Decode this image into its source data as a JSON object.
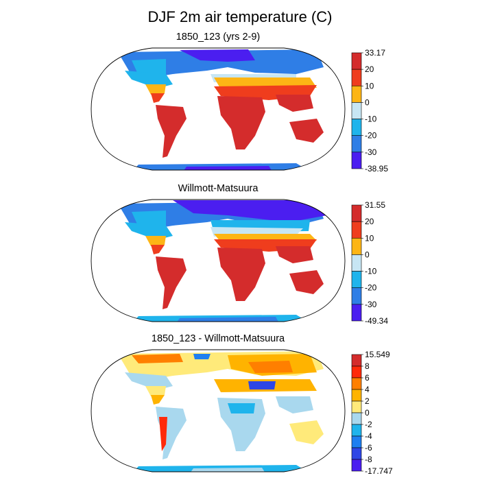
{
  "title": "DJF 2m air temperature (C)",
  "panels": [
    {
      "title": "1850_123 (yrs 2-9)",
      "colorbar": {
        "labels": [
          "33.17",
          "20",
          "10",
          "0",
          "-10",
          "-20",
          "-30",
          "-38.95"
        ],
        "colors": [
          "#d42c2c",
          "#ef3d1d",
          "#fdb515",
          "#c7e6f4",
          "#1fb4ec",
          "#2f7ee6",
          "#4b1ef0"
        ]
      }
    },
    {
      "title": "Willmott-Matsuura",
      "colorbar": {
        "labels": [
          "31.55",
          "20",
          "10",
          "0",
          "-10",
          "-20",
          "-30",
          "-49.34"
        ],
        "colors": [
          "#d42c2c",
          "#ef3d1d",
          "#fdb515",
          "#c7e6f4",
          "#1fb4ec",
          "#2f7ee6",
          "#4b1ef0"
        ]
      }
    },
    {
      "title": "1850_123 - Willmott-Matsuura",
      "colorbar": {
        "labels": [
          "15.549",
          "8",
          "6",
          "4",
          "2",
          "0",
          "-2",
          "-4",
          "-6",
          "-8",
          "-17.747"
        ],
        "colors": [
          "#d42c2c",
          "#ff2a0a",
          "#ff7f00",
          "#ffb300",
          "#ffea7a",
          "#a9d8ee",
          "#1fb4ec",
          "#1e7ff0",
          "#2e46e6",
          "#4b1ef0"
        ]
      }
    }
  ]
}
